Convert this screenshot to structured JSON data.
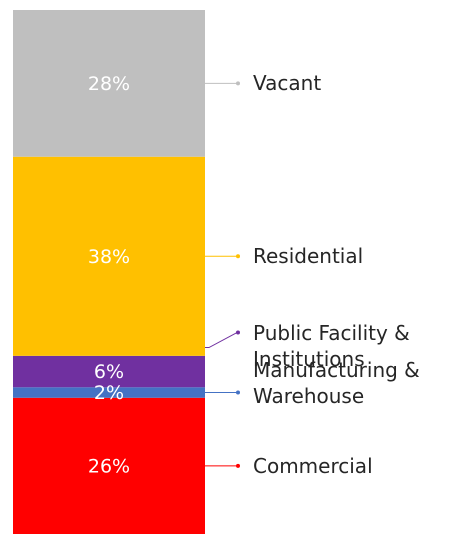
{
  "chart_data": {
    "type": "stacked-bar",
    "categories": [
      "Commercial",
      "Manufacturing & Warehouse",
      "Public Facility & Institutions",
      "Residential",
      "Vacant"
    ],
    "values": [
      26,
      2,
      6,
      38,
      28
    ],
    "value_labels": [
      "26%",
      "2%",
      "6%",
      "38%",
      "28%"
    ],
    "colors": [
      "#ff0000",
      "#4472c4",
      "#7030a0",
      "#ffc000",
      "#bfbfbf"
    ]
  }
}
